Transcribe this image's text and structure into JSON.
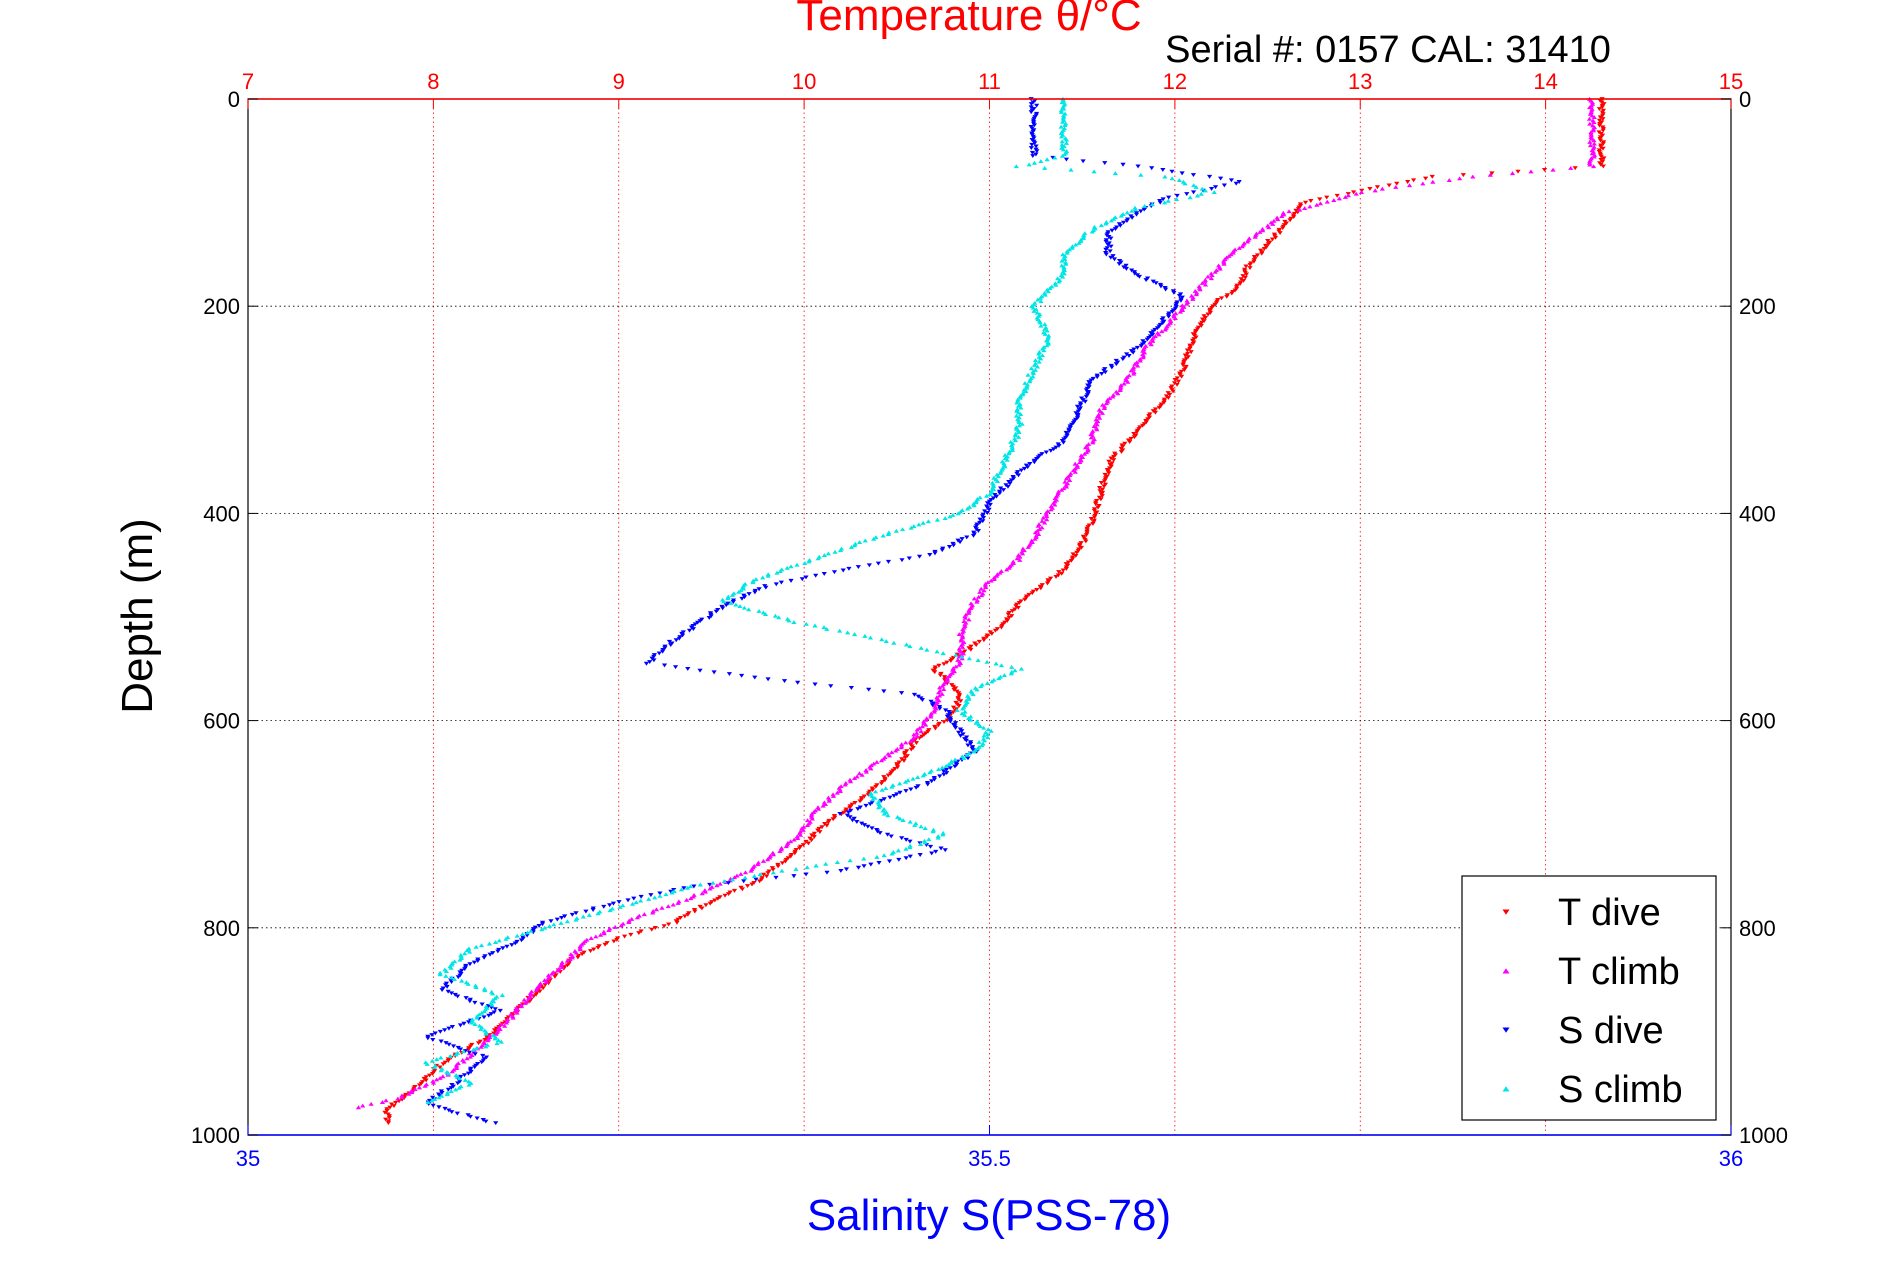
{
  "chart_data": {
    "type": "scatter",
    "title": "Temperature θ/°C",
    "subtitle": "Serial #: 0157  CAL: 31410",
    "ylabel": "Depth (m)",
    "xlabel_bottom": "Salinity S(PSS-78)",
    "temperature_axis": {
      "range": [
        7,
        15
      ],
      "ticks": [
        7,
        8,
        9,
        10,
        11,
        12,
        13,
        14,
        15
      ],
      "color": "#ff0000"
    },
    "salinity_axis": {
      "range": [
        35,
        36
      ],
      "ticks": [
        "35",
        "35.5",
        "36"
      ],
      "tick_values": [
        35,
        35.5,
        36
      ],
      "color": "#0000ff"
    },
    "depth_axis": {
      "range": [
        0,
        1000
      ],
      "ticks": [
        0,
        200,
        400,
        600,
        800,
        1000
      ],
      "reversed": true
    },
    "grid": true,
    "legend_position": "bottom-right",
    "series": [
      {
        "name": "T dive",
        "color": "#ff0000",
        "marker": "triangle-down",
        "axis": "temperature",
        "points": [
          [
            14.3,
            0
          ],
          [
            14.3,
            40
          ],
          [
            14.3,
            65
          ],
          [
            13.4,
            75
          ],
          [
            13.1,
            85
          ],
          [
            12.7,
            100
          ],
          [
            12.6,
            120
          ],
          [
            12.5,
            140
          ],
          [
            12.4,
            160
          ],
          [
            12.35,
            180
          ],
          [
            12.2,
            200
          ],
          [
            12.1,
            230
          ],
          [
            12.05,
            260
          ],
          [
            11.95,
            290
          ],
          [
            11.8,
            320
          ],
          [
            11.65,
            350
          ],
          [
            11.6,
            380
          ],
          [
            11.55,
            410
          ],
          [
            11.5,
            430
          ],
          [
            11.4,
            455
          ],
          [
            11.2,
            480
          ],
          [
            11.05,
            510
          ],
          [
            10.9,
            530
          ],
          [
            10.7,
            550
          ],
          [
            10.85,
            575
          ],
          [
            10.8,
            595
          ],
          [
            10.6,
            620
          ],
          [
            10.5,
            645
          ],
          [
            10.35,
            670
          ],
          [
            10.15,
            695
          ],
          [
            10.0,
            720
          ],
          [
            9.75,
            755
          ],
          [
            9.5,
            775
          ],
          [
            9.3,
            795
          ],
          [
            9.0,
            810
          ],
          [
            8.75,
            830
          ],
          [
            8.6,
            855
          ],
          [
            8.45,
            880
          ],
          [
            8.3,
            905
          ],
          [
            8.05,
            930
          ],
          [
            7.9,
            955
          ],
          [
            7.75,
            975
          ],
          [
            7.75,
            990
          ]
        ]
      },
      {
        "name": "T climb",
        "color": "#ff00ff",
        "marker": "triangle-up",
        "axis": "temperature",
        "points": [
          [
            14.25,
            0
          ],
          [
            14.25,
            40
          ],
          [
            14.25,
            65
          ],
          [
            13.6,
            75
          ],
          [
            13.0,
            90
          ],
          [
            12.6,
            110
          ],
          [
            12.45,
            130
          ],
          [
            12.3,
            150
          ],
          [
            12.2,
            170
          ],
          [
            12.1,
            190
          ],
          [
            12.0,
            210
          ],
          [
            11.85,
            240
          ],
          [
            11.75,
            270
          ],
          [
            11.6,
            300
          ],
          [
            11.55,
            330
          ],
          [
            11.45,
            360
          ],
          [
            11.35,
            390
          ],
          [
            11.25,
            420
          ],
          [
            11.15,
            445
          ],
          [
            11.0,
            465
          ],
          [
            10.9,
            490
          ],
          [
            10.85,
            515
          ],
          [
            10.85,
            540
          ],
          [
            10.75,
            565
          ],
          [
            10.7,
            590
          ],
          [
            10.6,
            615
          ],
          [
            10.4,
            640
          ],
          [
            10.2,
            665
          ],
          [
            10.05,
            690
          ],
          [
            9.95,
            715
          ],
          [
            9.7,
            745
          ],
          [
            9.4,
            770
          ],
          [
            9.1,
            790
          ],
          [
            8.85,
            810
          ],
          [
            8.7,
            835
          ],
          [
            8.55,
            860
          ],
          [
            8.4,
            890
          ],
          [
            8.25,
            915
          ],
          [
            8.05,
            945
          ],
          [
            7.8,
            965
          ],
          [
            7.55,
            975
          ]
        ]
      },
      {
        "name": "S dive",
        "color": "#0000ff",
        "marker": "triangle-down",
        "axis": "salinity",
        "points": [
          [
            35.53,
            0
          ],
          [
            35.53,
            30
          ],
          [
            35.53,
            55
          ],
          [
            35.6,
            65
          ],
          [
            35.67,
            80
          ],
          [
            35.62,
            95
          ],
          [
            35.6,
            110
          ],
          [
            35.58,
            130
          ],
          [
            35.58,
            150
          ],
          [
            35.6,
            170
          ],
          [
            35.63,
            190
          ],
          [
            35.62,
            210
          ],
          [
            35.6,
            240
          ],
          [
            35.57,
            270
          ],
          [
            35.56,
            300
          ],
          [
            35.55,
            330
          ],
          [
            35.52,
            360
          ],
          [
            35.5,
            390
          ],
          [
            35.49,
            420
          ],
          [
            35.46,
            440
          ],
          [
            35.4,
            455
          ],
          [
            35.35,
            470
          ],
          [
            35.32,
            490
          ],
          [
            35.3,
            510
          ],
          [
            35.28,
            530
          ],
          [
            35.27,
            545
          ],
          [
            35.35,
            560
          ],
          [
            35.45,
            575
          ],
          [
            35.47,
            590
          ],
          [
            35.48,
            610
          ],
          [
            35.49,
            630
          ],
          [
            35.46,
            660
          ],
          [
            35.4,
            690
          ],
          [
            35.43,
            710
          ],
          [
            35.47,
            725
          ],
          [
            35.4,
            745
          ],
          [
            35.3,
            760
          ],
          [
            35.25,
            775
          ],
          [
            35.2,
            795
          ],
          [
            35.18,
            815
          ],
          [
            35.15,
            835
          ],
          [
            35.13,
            860
          ],
          [
            35.17,
            880
          ],
          [
            35.12,
            905
          ],
          [
            35.16,
            925
          ],
          [
            35.14,
            950
          ],
          [
            35.12,
            970
          ],
          [
            35.17,
            990
          ]
        ]
      },
      {
        "name": "S climb",
        "color": "#00e5e5",
        "marker": "triangle-up",
        "axis": "salinity",
        "points": [
          [
            35.55,
            0
          ],
          [
            35.55,
            30
          ],
          [
            35.55,
            55
          ],
          [
            35.52,
            65
          ],
          [
            35.62,
            75
          ],
          [
            35.65,
            90
          ],
          [
            35.6,
            105
          ],
          [
            35.57,
            125
          ],
          [
            35.55,
            150
          ],
          [
            35.55,
            170
          ],
          [
            35.53,
            200
          ],
          [
            35.54,
            230
          ],
          [
            35.53,
            260
          ],
          [
            35.52,
            290
          ],
          [
            35.52,
            320
          ],
          [
            35.51,
            350
          ],
          [
            35.5,
            380
          ],
          [
            35.48,
            400
          ],
          [
            35.43,
            420
          ],
          [
            35.38,
            445
          ],
          [
            35.34,
            465
          ],
          [
            35.32,
            485
          ],
          [
            35.37,
            505
          ],
          [
            35.42,
            520
          ],
          [
            35.47,
            535
          ],
          [
            35.52,
            550
          ],
          [
            35.49,
            570
          ],
          [
            35.48,
            590
          ],
          [
            35.5,
            610
          ],
          [
            35.49,
            630
          ],
          [
            35.46,
            650
          ],
          [
            35.42,
            670
          ],
          [
            35.43,
            690
          ],
          [
            35.47,
            710
          ],
          [
            35.43,
            730
          ],
          [
            35.36,
            745
          ],
          [
            35.3,
            760
          ],
          [
            35.25,
            780
          ],
          [
            35.2,
            800
          ],
          [
            35.15,
            820
          ],
          [
            35.13,
            845
          ],
          [
            35.17,
            865
          ],
          [
            35.15,
            890
          ],
          [
            35.17,
            910
          ],
          [
            35.12,
            930
          ],
          [
            35.15,
            950
          ],
          [
            35.12,
            970
          ]
        ]
      }
    ]
  }
}
